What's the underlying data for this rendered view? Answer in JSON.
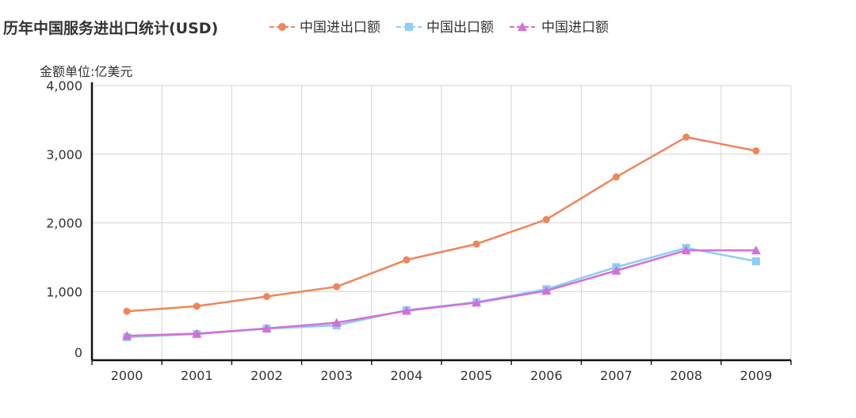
{
  "chart_data": {
    "type": "line",
    "title": "历年中国服务进出口统计(USD)",
    "unit_label": "金额单位:亿美元",
    "categories": [
      "2000",
      "2001",
      "2002",
      "2003",
      "2004",
      "2005",
      "2006",
      "2007",
      "2008",
      "2009"
    ],
    "y_tick_labels": [
      "0",
      "1,000",
      "2,000",
      "3,000",
      "4,000"
    ],
    "ylim": [
      0,
      4000
    ],
    "grid": true,
    "legend_position": "top",
    "series": [
      {
        "name": "中国进出口额",
        "color": "#f0855a",
        "marker": "circle",
        "values": [
          712,
          787,
          928,
          1070,
          1461,
          1692,
          2048,
          2668,
          3249,
          3049
        ]
      },
      {
        "name": "中国出口额",
        "color": "#8ecdf4",
        "marker": "square",
        "values": [
          336,
          380,
          460,
          507,
          729,
          846,
          1034,
          1356,
          1635,
          1440
        ]
      },
      {
        "name": "中国进口额",
        "color": "#d46fd8",
        "marker": "triangle",
        "values": [
          355,
          387,
          463,
          546,
          720,
          838,
          1011,
          1304,
          1600,
          1600
        ]
      }
    ]
  }
}
